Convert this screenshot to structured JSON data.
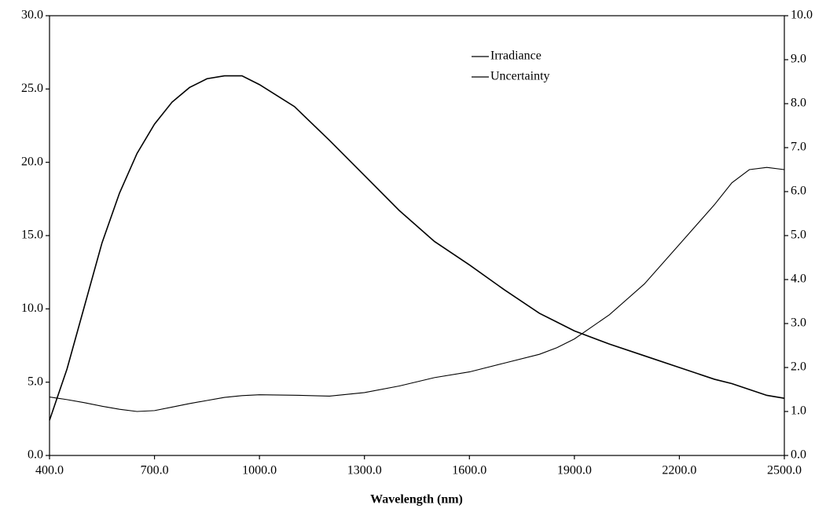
{
  "chart_data": {
    "type": "line",
    "x_label": "Wavelength (nm)",
    "x": [
      400,
      450,
      500,
      550,
      600,
      650,
      700,
      750,
      800,
      850,
      900,
      950,
      1000,
      1100,
      1200,
      1300,
      1400,
      1500,
      1600,
      1700,
      1800,
      1850,
      1900,
      2000,
      2100,
      2200,
      2300,
      2350,
      2400,
      2450,
      2500
    ],
    "series": [
      {
        "name": "Irradiance",
        "color": "#000000",
        "values": [
          2.4,
          5.9,
          10.2,
          14.5,
          17.9,
          20.6,
          22.6,
          24.1,
          25.1,
          25.7,
          25.9,
          25.9,
          25.3,
          23.8,
          21.5,
          19.1,
          16.7,
          14.6,
          13.0,
          11.3,
          9.7,
          9.1,
          8.5,
          7.6,
          6.8,
          6.0,
          5.2,
          4.9,
          4.5,
          4.1,
          3.9
        ]
      },
      {
        "name": "Uncertainty",
        "color": "#000000",
        "axis": "y2",
        "values": [
          1.33,
          1.27,
          1.2,
          1.12,
          1.05,
          1.0,
          1.02,
          1.1,
          1.18,
          1.25,
          1.32,
          1.36,
          1.38,
          1.37,
          1.35,
          1.43,
          1.58,
          1.77,
          1.9,
          2.1,
          2.3,
          2.45,
          2.65,
          3.2,
          3.9,
          4.8,
          5.7,
          6.2,
          6.5,
          6.55,
          6.5
        ]
      }
    ],
    "xlim": [
      400,
      2500
    ],
    "xticks": [
      {
        "value": 400,
        "label": "400.0"
      },
      {
        "value": 700,
        "label": "700.0"
      },
      {
        "value": 1000,
        "label": "1000.0"
      },
      {
        "value": 1300,
        "label": "1300.0"
      },
      {
        "value": 1600,
        "label": "1600.0"
      },
      {
        "value": 1900,
        "label": "1900.0"
      },
      {
        "value": 2200,
        "label": "2200.0"
      },
      {
        "value": 2500,
        "label": "2500.0"
      }
    ],
    "ylim": [
      0,
      30
    ],
    "yticks": [
      {
        "value": 0,
        "label": "0.0"
      },
      {
        "value": 5,
        "label": "5.0"
      },
      {
        "value": 10,
        "label": "10.0"
      },
      {
        "value": 15,
        "label": "15.0"
      },
      {
        "value": 20,
        "label": "20.0"
      },
      {
        "value": 25,
        "label": "25.0"
      },
      {
        "value": 30,
        "label": "30.0"
      }
    ],
    "y2lim": [
      0,
      10
    ],
    "y2ticks": [
      {
        "value": 0,
        "label": "0.0"
      },
      {
        "value": 1,
        "label": "1.0"
      },
      {
        "value": 2,
        "label": "2.0"
      },
      {
        "value": 3,
        "label": "3.0"
      },
      {
        "value": 4,
        "label": "4.0"
      },
      {
        "value": 5,
        "label": "5.0"
      },
      {
        "value": 6,
        "label": "6.0"
      },
      {
        "value": 7,
        "label": "7.0"
      },
      {
        "value": 8,
        "label": "8.0"
      },
      {
        "value": 9,
        "label": "9.0"
      },
      {
        "value": 10,
        "label": "10.0"
      }
    ],
    "legend": "top-center",
    "grid": false
  }
}
